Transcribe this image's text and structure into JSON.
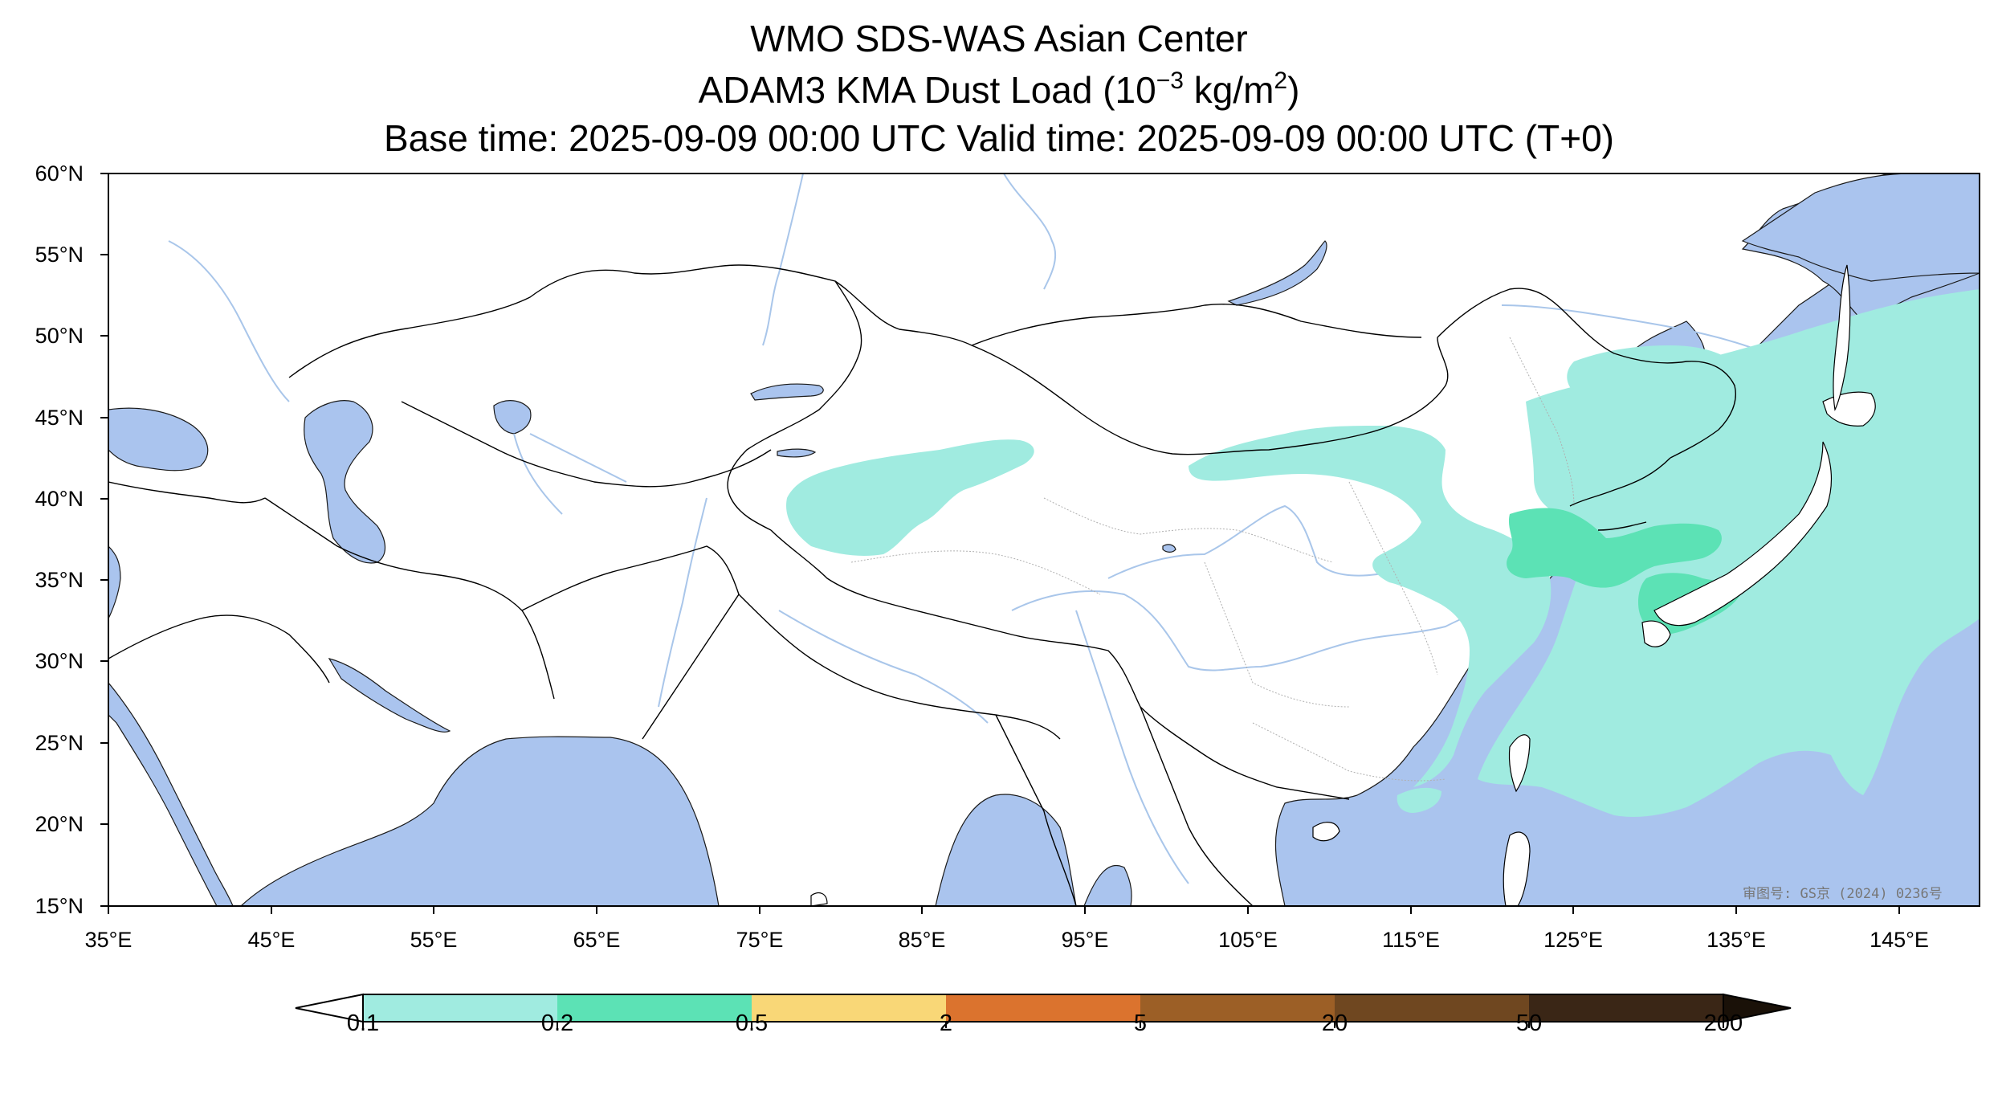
{
  "title": {
    "line1": "WMO SDS-WAS Asian Center",
    "line2_prefix": "ADAM3 KMA Dust Load (10",
    "line2_exp1": "−3",
    "line2_mid": " kg/m",
    "line2_exp2": "2",
    "line2_suffix": ")",
    "line3": "Base time: 2025-09-09 00:00 UTC Valid time: 2025-09-09 00:00 UTC (T+0)"
  },
  "map": {
    "lon_range": [
      35,
      150
    ],
    "lat_range": [
      15,
      60
    ],
    "lat_ticks": [
      "60°N",
      "55°N",
      "50°N",
      "45°N",
      "40°N",
      "35°N",
      "30°N",
      "25°N",
      "20°N",
      "15°N"
    ],
    "lon_ticks": [
      "35°E",
      "45°E",
      "55°E",
      "65°E",
      "75°E",
      "85°E",
      "95°E",
      "105°E",
      "115°E",
      "125°E",
      "135°E",
      "145°E"
    ],
    "colors": {
      "water": "#aac4ee",
      "land": "#ffffff",
      "border": "#000000",
      "river": "#a9c6ea",
      "province": "#b0b0b0"
    },
    "watermark": "审图号: GS京 (2024) 0236号"
  },
  "colorbar": {
    "labels": [
      "0.1",
      "0.2",
      "0.5",
      "2",
      "5",
      "20",
      "50",
      "200"
    ],
    "colors": [
      "#a0ebe0",
      "#5ce2b5",
      "#f9d777",
      "#db732e",
      "#9c5f26",
      "#6f4720",
      "#3a2616"
    ],
    "extend": "both"
  }
}
